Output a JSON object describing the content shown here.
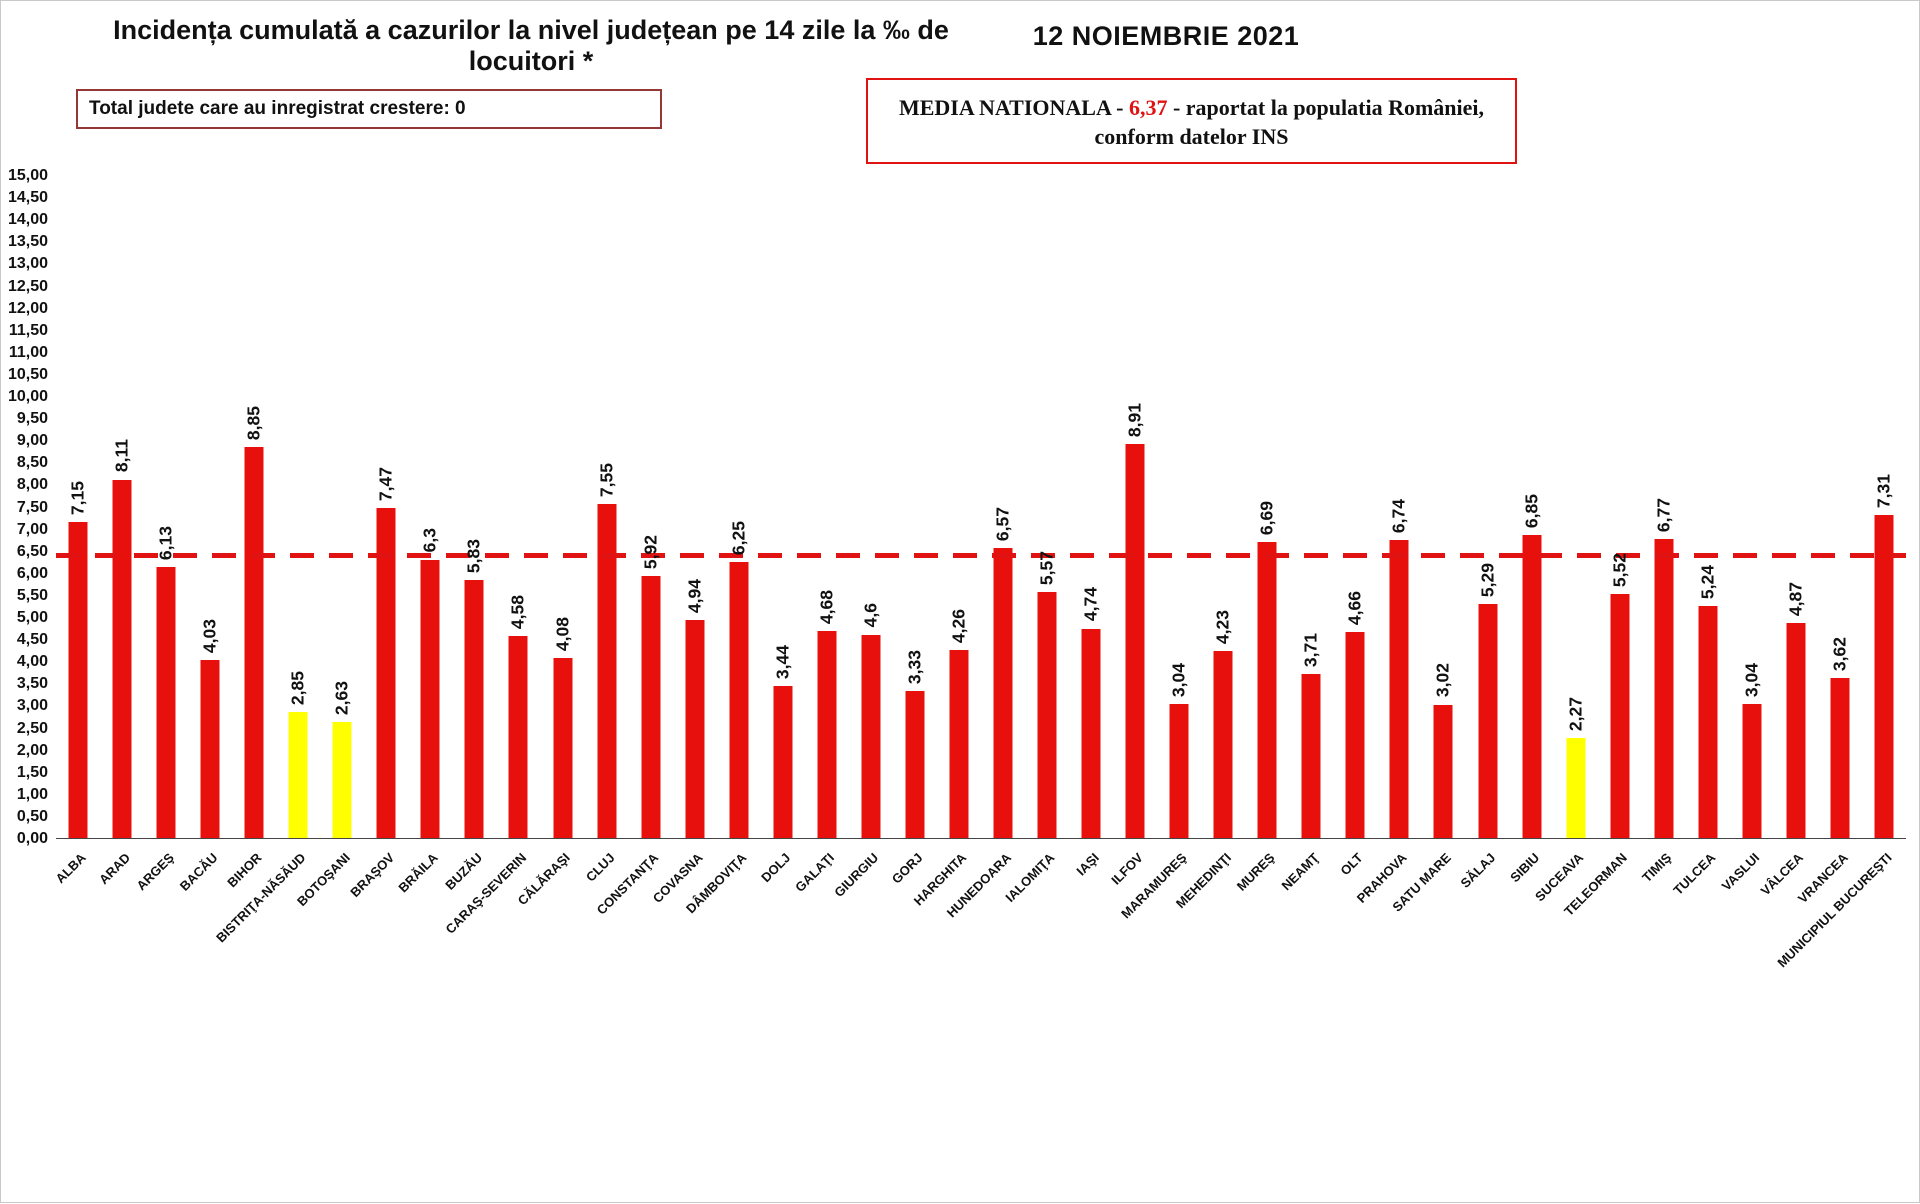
{
  "header": {
    "title": "Incidența cumulată a cazurilor la nivel județean pe 14 zile la ‰ de locuitori *",
    "date": "12 NOIEMBRIE 2021"
  },
  "info_boxes": {
    "total_label": "Total judete care au inregistrat crestere: 0",
    "media": {
      "prefix": "MEDIA NATIONALA - ",
      "value": "6,37",
      "suffix": " -  raportat la populatia României,",
      "line2": "conform datelor INS"
    }
  },
  "chart_data": {
    "type": "bar",
    "title": "Incidența cumulată a cazurilor la nivel județean pe 14 zile la ‰ de locuitori *",
    "date": "12 NOIEMBRIE 2021",
    "categories": [
      "ALBA",
      "ARAD",
      "ARGEŞ",
      "BACĂU",
      "BIHOR",
      "BISTRIŢA-NĂSĂUD",
      "BOTOŞANI",
      "BRAŞOV",
      "BRĂILA",
      "BUZĂU",
      "CARAŞ-SEVERIN",
      "CĂLĂRAŞI",
      "CLUJ",
      "CONSTANŢA",
      "COVASNA",
      "DÂMBOVIŢA",
      "DOLJ",
      "GALAŢI",
      "GIURGIU",
      "GORJ",
      "HARGHITA",
      "HUNEDOARA",
      "IALOMIŢA",
      "IAŞI",
      "ILFOV",
      "MARAMUREŞ",
      "MEHEDINŢI",
      "MUREŞ",
      "NEAMŢ",
      "OLT",
      "PRAHOVA",
      "SATU MARE",
      "SĂLAJ",
      "SIBIU",
      "SUCEAVA",
      "TELEORMAN",
      "TIMIŞ",
      "TULCEA",
      "VASLUI",
      "VÂLCEA",
      "VRANCEA",
      "MUNICIPIUL BUCUREŞTI"
    ],
    "values": [
      7.15,
      8.11,
      6.13,
      4.03,
      8.85,
      2.85,
      2.63,
      7.47,
      6.3,
      5.83,
      4.58,
      4.08,
      7.55,
      5.92,
      4.94,
      6.25,
      3.44,
      4.68,
      4.6,
      3.33,
      4.26,
      6.57,
      5.57,
      4.74,
      8.91,
      3.04,
      4.23,
      6.69,
      3.71,
      4.66,
      6.74,
      3.02,
      5.29,
      6.85,
      2.27,
      5.52,
      6.77,
      5.24,
      3.04,
      4.87,
      3.62,
      7.31
    ],
    "value_labels": [
      "7,15",
      "8,11",
      "6,13",
      "4,03",
      "8,85",
      "2,85",
      "2,63",
      "7,47",
      "6,3",
      "5,83",
      "4,58",
      "4,08",
      "7,55",
      "5,92",
      "4,94",
      "6,25",
      "3,44",
      "4,68",
      "4,6",
      "3,33",
      "4,26",
      "6,57",
      "5,57",
      "4,74",
      "8,91",
      "3,04",
      "4,23",
      "6,69",
      "3,71",
      "4,66",
      "6,74",
      "3,02",
      "5,29",
      "6,85",
      "2,27",
      "5,52",
      "6,77",
      "5,24",
      "3,04",
      "4,87",
      "3,62",
      "7,31"
    ],
    "highlighted_categories": [
      "BISTRIŢA-NĂSĂUD",
      "BOTOŞANI",
      "SUCEAVA"
    ],
    "reference_line": 6.37,
    "reference_line_label": "MEDIA NATIONALA",
    "ylim": [
      0,
      15
    ],
    "ytick_step": 0.5,
    "grid": false,
    "legend_position": "none",
    "colors": {
      "bar_default": "#e8100c",
      "bar_highlight": "#ffff00",
      "reference_line": "#e01212",
      "text": "#111111"
    }
  }
}
